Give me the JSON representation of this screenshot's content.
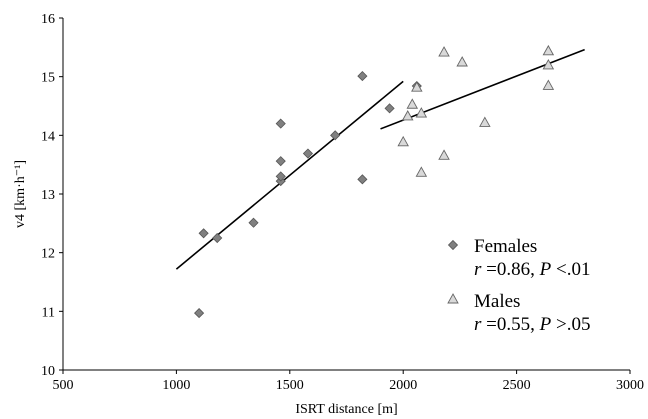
{
  "chart_data": {
    "type": "scatter",
    "title": "",
    "xlabel": "ISRT distance [m]",
    "ylabel": "v4 [km·h⁻¹]",
    "xlim": [
      500,
      3000
    ],
    "ylim": [
      10,
      16
    ],
    "xticks": [
      500,
      1000,
      1500,
      2000,
      2500,
      3000
    ],
    "yticks": [
      10,
      11,
      12,
      13,
      14,
      15,
      16
    ],
    "grid": false,
    "legend_placement": "lower-right",
    "series": [
      {
        "name": "Females",
        "stat_r": "0.86",
        "stat_p_op": "<",
        "stat_p": ".01",
        "marker": "diamond",
        "color": "#808080",
        "points": [
          [
            1100,
            10.97
          ],
          [
            1120,
            12.33
          ],
          [
            1180,
            12.25
          ],
          [
            1340,
            12.51
          ],
          [
            1460,
            13.22
          ],
          [
            1460,
            13.3
          ],
          [
            1460,
            13.56
          ],
          [
            1460,
            14.2
          ],
          [
            1580,
            13.69
          ],
          [
            1700,
            14.0
          ],
          [
            1820,
            13.25
          ],
          [
            1820,
            15.01
          ],
          [
            1940,
            14.46
          ],
          [
            2060,
            14.84
          ]
        ],
        "fit": {
          "x": [
            1000,
            2000
          ],
          "y": [
            11.72,
            14.92
          ]
        }
      },
      {
        "name": "Males",
        "stat_r": "0.55",
        "stat_p_op": ">",
        "stat_p": ".05",
        "marker": "triangle",
        "color": "#d9d9d9",
        "points": [
          [
            2000,
            13.89
          ],
          [
            2020,
            14.33
          ],
          [
            2040,
            14.53
          ],
          [
            2060,
            14.82
          ],
          [
            2080,
            14.38
          ],
          [
            2080,
            13.37
          ],
          [
            2180,
            13.66
          ],
          [
            2180,
            15.42
          ],
          [
            2260,
            15.25
          ],
          [
            2360,
            14.22
          ],
          [
            2640,
            15.44
          ],
          [
            2640,
            15.2
          ],
          [
            2640,
            14.85
          ]
        ],
        "fit": {
          "x": [
            1900,
            2800
          ],
          "y": [
            14.11,
            15.46
          ]
        }
      }
    ]
  },
  "legend": {
    "females_label": "Females",
    "males_label": "Males",
    "r_symbol": "r",
    "p_symbol": "P"
  }
}
